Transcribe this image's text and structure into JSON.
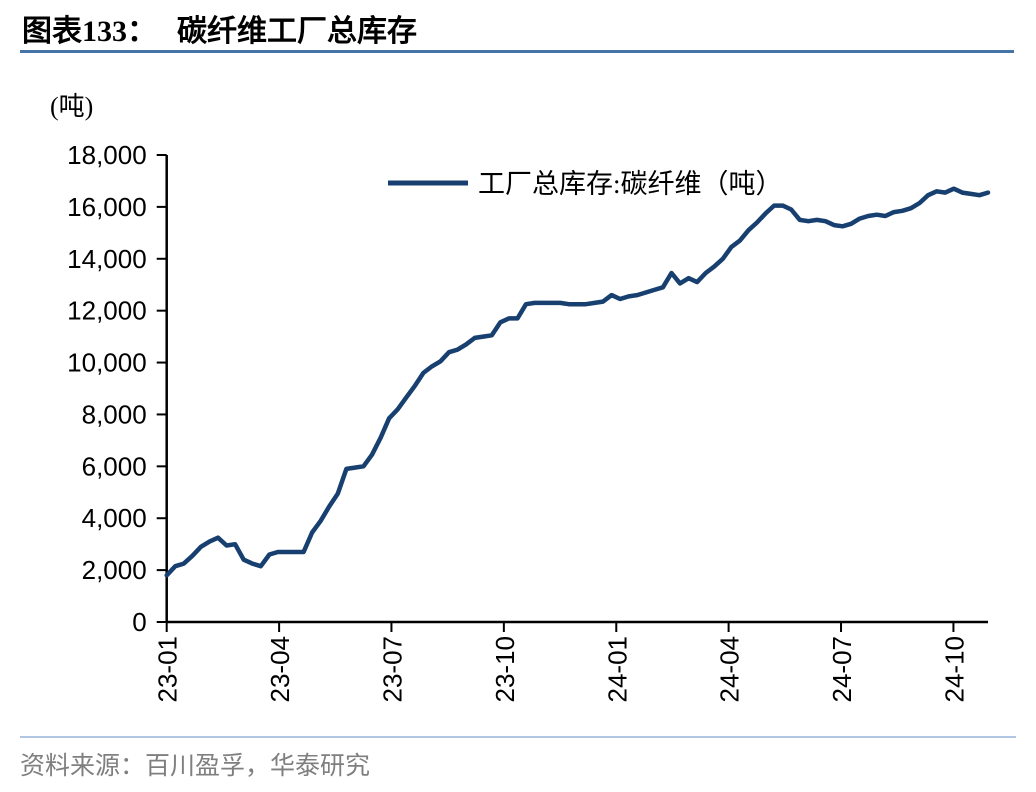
{
  "header": {
    "chart_label": "图表133：",
    "title": "碳纤维工厂总库存"
  },
  "footer": {
    "source": "资料来源：百川盈孚，华泰研究"
  },
  "colors": {
    "line": "#173F6F",
    "title_underline": "#4674A8",
    "footer_rule": "#B0C6E2",
    "source_text": "#7F7F7F",
    "axis": "#000000"
  },
  "chart_data": {
    "type": "line",
    "title": "碳纤维工厂总库存",
    "unit_label": "(吨)",
    "grid": false,
    "legend": {
      "label": "工厂总库存:碳纤维（吨）",
      "position": "top-center"
    },
    "y_axis": {
      "min": 0,
      "max": 18000,
      "step": 2000,
      "tick_labels": [
        "0",
        "2,000",
        "4,000",
        "6,000",
        "8,000",
        "10,000",
        "12,000",
        "14,000",
        "16,000",
        "18,000"
      ]
    },
    "x_axis": {
      "frequency": "weekly",
      "range_note": "2023-01 to 2024-11",
      "ticks": [
        {
          "label": "23-01",
          "week": 0
        },
        {
          "label": "23-04",
          "week": 13.14
        },
        {
          "label": "23-07",
          "week": 26.27
        },
        {
          "label": "23-10",
          "week": 39.41
        },
        {
          "label": "24-01",
          "week": 52.55
        },
        {
          "label": "24-04",
          "week": 65.68
        },
        {
          "label": "24-07",
          "week": 78.82
        },
        {
          "label": "24-10",
          "week": 91.96
        }
      ]
    },
    "series": [
      {
        "name": "工厂总库存:碳纤维（吨）",
        "color": "#173F6F",
        "values": [
          1800,
          2150,
          2250,
          2550,
          2900,
          3100,
          3250,
          2950,
          3000,
          2400,
          2250,
          2150,
          2600,
          2700,
          2700,
          2700,
          2700,
          3450,
          3900,
          4450,
          4950,
          5900,
          5950,
          6000,
          6450,
          7100,
          7850,
          8200,
          8650,
          9100,
          9600,
          9850,
          10050,
          10400,
          10500,
          10700,
          10950,
          11000,
          11050,
          11550,
          11700,
          11700,
          12250,
          12300,
          12300,
          12300,
          12300,
          12250,
          12250,
          12250,
          12300,
          12350,
          12600,
          12450,
          12550,
          12600,
          12700,
          12800,
          12900,
          13450,
          13050,
          13250,
          13100,
          13450,
          13700,
          14000,
          14450,
          14700,
          15100,
          15400,
          15750,
          16050,
          16050,
          15900,
          15500,
          15450,
          15500,
          15450,
          15300,
          15250,
          15350,
          15550,
          15650,
          15700,
          15650,
          15800,
          15850,
          15950,
          16150,
          16450,
          16600,
          16550,
          16700,
          16550,
          16500,
          16450,
          16550
        ]
      }
    ]
  }
}
